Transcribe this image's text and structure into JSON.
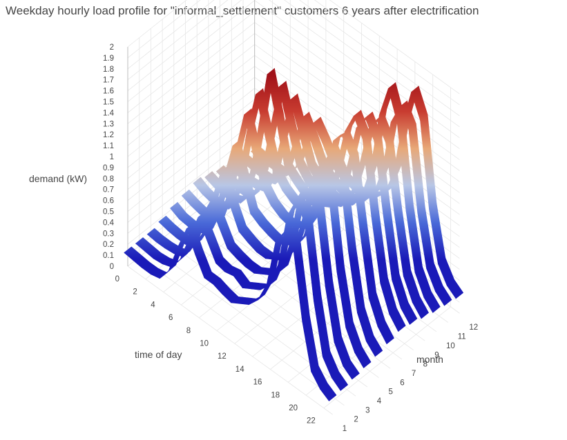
{
  "chart_data": {
    "type": "surface-ribbons-3d",
    "title": "Weekday hourly load profile for  \"informal_settlement\" customers 6 years after electrification",
    "x_axis": {
      "label": "time of day",
      "range": [
        0,
        23
      ],
      "ticks": [
        0,
        2,
        4,
        6,
        8,
        10,
        12,
        14,
        16,
        18,
        20,
        22
      ]
    },
    "y_axis": {
      "label": "month",
      "range": [
        1,
        12
      ],
      "ticks": [
        1,
        2,
        3,
        4,
        5,
        6,
        7,
        8,
        9,
        10,
        11,
        12
      ]
    },
    "z_axis": {
      "label": "demand (kW)",
      "range": [
        0,
        2
      ],
      "ticks": [
        "0",
        "0.1",
        "0.2",
        "0.3",
        "0.4",
        "0.5",
        "0.6",
        "0.7",
        "0.8",
        "0.9",
        "1",
        "1.1",
        "1.2",
        "1.3",
        "1.4",
        "1.5",
        "1.6",
        "1.7",
        "1.8",
        "1.9",
        "2"
      ]
    },
    "colorscale": [
      "#1a1ab8",
      "#4a6ad8",
      "#b8c6e6",
      "#e8a878",
      "#c83c30",
      "#a01018"
    ],
    "hours": [
      0,
      1,
      2,
      3,
      4,
      5,
      6,
      7,
      8,
      9,
      10,
      11,
      12,
      13,
      14,
      15,
      16,
      17,
      18,
      19,
      20,
      21,
      22,
      23
    ],
    "series": [
      {
        "month": 1,
        "values": [
          0.15,
          0.14,
          0.13,
          0.13,
          0.15,
          0.28,
          0.55,
          0.78,
          0.6,
          0.45,
          0.45,
          0.42,
          0.4,
          0.45,
          0.5,
          0.6,
          0.8,
          1.25,
          1.4,
          1.3,
          0.7,
          0.3,
          0.2,
          0.15
        ]
      },
      {
        "month": 2,
        "values": [
          0.15,
          0.14,
          0.13,
          0.14,
          0.17,
          0.3,
          0.55,
          0.8,
          0.65,
          0.5,
          0.48,
          0.5,
          0.45,
          0.5,
          0.55,
          0.65,
          0.9,
          1.4,
          1.6,
          1.45,
          0.8,
          0.35,
          0.22,
          0.16
        ]
      },
      {
        "month": 3,
        "values": [
          0.15,
          0.14,
          0.14,
          0.15,
          0.18,
          0.35,
          0.65,
          0.85,
          0.7,
          0.55,
          0.52,
          0.5,
          0.5,
          0.55,
          0.6,
          0.7,
          1.0,
          1.5,
          1.7,
          1.5,
          0.85,
          0.4,
          0.24,
          0.18
        ]
      },
      {
        "month": 4,
        "values": [
          0.18,
          0.16,
          0.15,
          0.15,
          0.2,
          0.38,
          0.75,
          1.05,
          0.8,
          0.62,
          0.58,
          0.55,
          0.55,
          0.6,
          0.65,
          0.8,
          1.1,
          1.55,
          1.75,
          1.6,
          0.9,
          0.45,
          0.28,
          0.2
        ]
      },
      {
        "month": 5,
        "values": [
          0.22,
          0.18,
          0.17,
          0.18,
          0.22,
          0.45,
          0.85,
          1.2,
          0.95,
          0.7,
          0.65,
          0.62,
          0.6,
          0.65,
          0.7,
          0.85,
          1.2,
          1.6,
          1.8,
          1.65,
          1.0,
          0.5,
          0.3,
          0.22
        ]
      },
      {
        "month": 6,
        "values": [
          0.25,
          0.22,
          0.2,
          0.2,
          0.25,
          0.52,
          1.0,
          1.4,
          1.1,
          0.85,
          0.75,
          0.7,
          0.68,
          0.72,
          0.78,
          0.95,
          1.3,
          1.75,
          1.85,
          1.7,
          1.1,
          0.55,
          0.35,
          0.25
        ]
      },
      {
        "month": 7,
        "values": [
          0.28,
          0.24,
          0.22,
          0.22,
          0.28,
          0.58,
          1.1,
          1.5,
          1.2,
          0.9,
          0.8,
          0.75,
          0.72,
          0.78,
          0.85,
          1.0,
          1.35,
          1.75,
          1.95,
          1.8,
          1.15,
          0.6,
          0.38,
          0.28
        ]
      },
      {
        "month": 8,
        "values": [
          0.25,
          0.22,
          0.2,
          0.21,
          0.25,
          0.55,
          1.05,
          1.6,
          1.25,
          0.85,
          0.78,
          0.72,
          0.7,
          0.75,
          0.8,
          0.95,
          1.3,
          1.7,
          1.85,
          1.7,
          1.1,
          0.55,
          0.35,
          0.26
        ]
      },
      {
        "month": 9,
        "values": [
          0.22,
          0.19,
          0.18,
          0.18,
          0.22,
          0.48,
          0.95,
          1.4,
          1.1,
          0.8,
          0.7,
          0.66,
          0.64,
          0.68,
          0.72,
          0.88,
          1.2,
          1.6,
          1.75,
          1.6,
          1.0,
          0.5,
          0.32,
          0.23
        ]
      },
      {
        "month": 10,
        "values": [
          0.18,
          0.16,
          0.15,
          0.16,
          0.19,
          0.4,
          0.8,
          1.2,
          0.95,
          0.7,
          0.62,
          0.58,
          0.56,
          0.6,
          0.65,
          0.8,
          1.1,
          1.65,
          1.95,
          1.7,
          0.95,
          0.45,
          0.28,
          0.2
        ]
      },
      {
        "month": 11,
        "values": [
          0.16,
          0.15,
          0.14,
          0.14,
          0.17,
          0.32,
          0.65,
          0.95,
          0.8,
          0.62,
          0.55,
          0.52,
          0.5,
          0.55,
          0.6,
          0.72,
          1.0,
          1.5,
          1.7,
          1.55,
          0.85,
          0.4,
          0.25,
          0.18
        ]
      },
      {
        "month": 12,
        "values": [
          0.15,
          0.14,
          0.13,
          0.13,
          0.16,
          0.3,
          0.58,
          0.82,
          0.7,
          0.55,
          0.5,
          0.48,
          0.46,
          0.5,
          0.55,
          0.65,
          0.9,
          1.4,
          1.75,
          1.55,
          0.8,
          0.36,
          0.22,
          0.16
        ]
      }
    ]
  }
}
